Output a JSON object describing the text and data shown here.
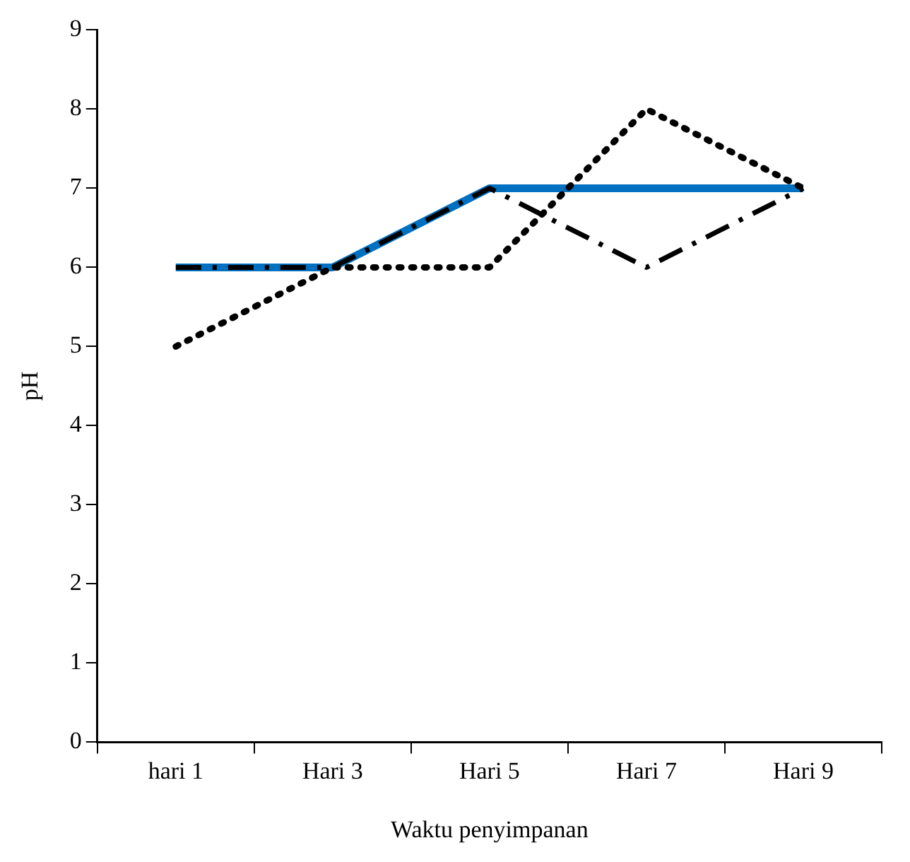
{
  "chart_data": {
    "type": "line",
    "xlabel": "Waktu penyimpanan",
    "ylabel": "pH",
    "categories": [
      "hari 1",
      "Hari 3",
      "Hari 5",
      "Hari 7",
      "Hari 9"
    ],
    "series": [
      {
        "color": "#0070c0",
        "values": [
          6,
          6,
          7,
          7,
          7
        ],
        "line_style": "solid"
      },
      {
        "color": "#000000",
        "values": [
          5,
          6,
          6,
          8,
          7
        ],
        "line_style": "dotted"
      },
      {
        "color": "#000000",
        "values": [
          6,
          6,
          7,
          6,
          7
        ],
        "line_style": "dashed"
      }
    ],
    "ylim": [
      0,
      9
    ],
    "yticks": [
      0,
      1,
      2,
      3,
      4,
      5,
      6,
      7,
      8,
      9
    ],
    "grid": false,
    "legend": false,
    "marker": "none"
  }
}
